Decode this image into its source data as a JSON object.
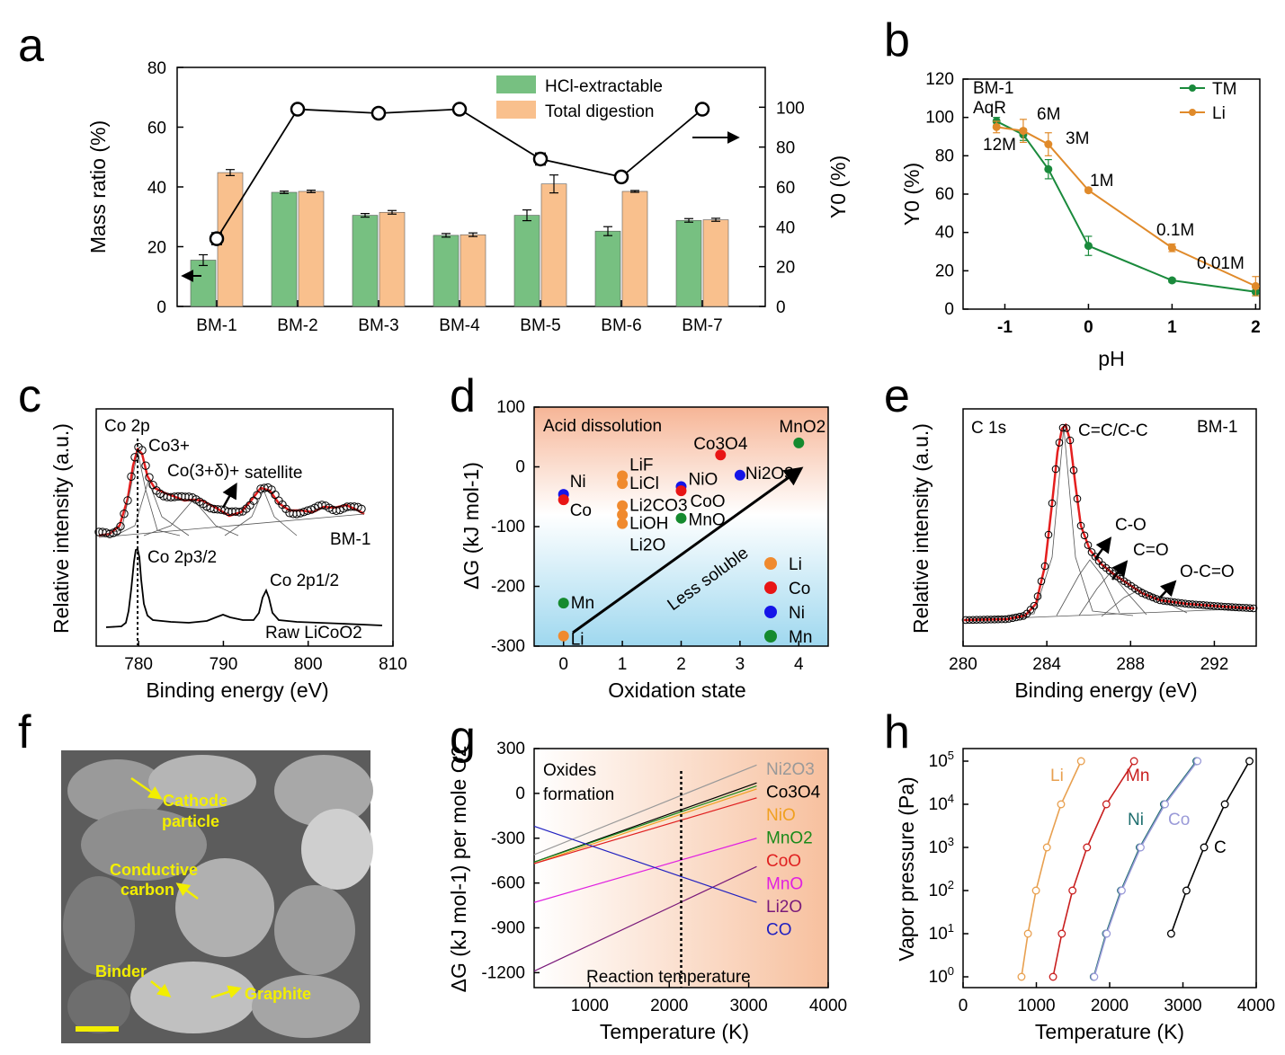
{
  "panel_labels": [
    "a",
    "b",
    "c",
    "d",
    "e",
    "f",
    "g",
    "h"
  ],
  "chart_data": [
    {
      "panel": "a",
      "type": "bar",
      "categories": [
        "BM-1",
        "BM-2",
        "BM-3",
        "BM-4",
        "BM-5",
        "BM-6",
        "BM-7"
      ],
      "series": [
        {
          "name": "HCl-extractable",
          "color": "#77c081",
          "values": [
            15.5,
            38.2,
            30.5,
            23.8,
            30.5,
            25.2,
            28.8
          ],
          "errors": [
            1.8,
            0.4,
            0.6,
            0.6,
            1.8,
            1.5,
            0.6
          ]
        },
        {
          "name": "Total digestion",
          "color": "#f9c08d",
          "values": [
            44.8,
            38.5,
            31.5,
            24.0,
            41.0,
            38.5,
            29.0
          ],
          "errors": [
            1.0,
            0.4,
            0.6,
            0.6,
            3.0,
            0.3,
            0.5
          ]
        }
      ],
      "secondary_series": {
        "name": "Y0",
        "values": [
          34,
          99,
          97,
          99,
          74,
          65,
          99
        ],
        "errors": [
          3,
          1,
          1,
          2,
          3,
          2,
          1
        ]
      },
      "xlabel": "",
      "ylabel": "Mass ratio (%)",
      "ylim": [
        0,
        80
      ],
      "yticks": [
        "0",
        "20",
        "40",
        "60",
        "80"
      ],
      "y2label": "Y0 (%)",
      "y2lim": [
        0,
        120
      ],
      "y2ticks": [
        "0",
        "20",
        "40",
        "60",
        "80",
        "100"
      ],
      "arrows": [
        "←",
        "→"
      ]
    },
    {
      "panel": "b",
      "type": "line",
      "title": "BM-1",
      "xlabel": "pH",
      "ylabel": "Y0 (%)",
      "xlim": [
        -1.5,
        2.05
      ],
      "ylim": [
        0,
        120
      ],
      "xticks": [
        "-1",
        "0",
        "1",
        "2"
      ],
      "yticks": [
        "0",
        "20",
        "40",
        "60",
        "80",
        "100",
        "120"
      ],
      "series": [
        {
          "name": "TM",
          "color": "#1a8a3c",
          "x": [
            -1.1,
            -0.78,
            -0.48,
            0,
            1,
            2
          ],
          "y": [
            98,
            91,
            73,
            33,
            15,
            9
          ],
          "errors": [
            2,
            3,
            5,
            5,
            1,
            2
          ]
        },
        {
          "name": "Li",
          "color": "#e08a2a",
          "x": [
            -1.1,
            -0.78,
            -0.48,
            0,
            1,
            2
          ],
          "y": [
            95,
            93,
            86,
            62,
            32,
            12
          ],
          "errors": [
            3,
            6,
            6,
            1,
            2,
            5
          ]
        }
      ],
      "annotations": [
        "AqR",
        "12M",
        "6M",
        "3M",
        "1M",
        "0.1M",
        "0.01M"
      ]
    },
    {
      "panel": "c",
      "type": "line",
      "title": "Co 2p",
      "xlabel": "Binding energy (eV)",
      "ylabel": "Relative intensity (a.u.)",
      "xlim": [
        775,
        810
      ],
      "xticks": [
        "780",
        "790",
        "800",
        "810"
      ],
      "series_labels": [
        "BM-1",
        "Raw LiCoO2"
      ],
      "annotations": [
        "Co3+",
        "Co(3+δ)+",
        "satellite",
        "Co 2p3/2",
        "Co 2p1/2"
      ]
    },
    {
      "panel": "d",
      "type": "scatter",
      "title": "Acid dissolution",
      "xlabel": "Oxidation state",
      "ylabel": "ΔG (kJ mol-1)",
      "xlim": [
        -0.5,
        4.5
      ],
      "ylim": [
        -300,
        100
      ],
      "xticks": [
        "0",
        "1",
        "2",
        "3",
        "4"
      ],
      "yticks": [
        "-300",
        "-200",
        "-100",
        "0",
        "100"
      ],
      "legend": [
        {
          "name": "Li",
          "color": "#f08a2e"
        },
        {
          "name": "Co",
          "color": "#e81515"
        },
        {
          "name": "Ni",
          "color": "#1515e8"
        },
        {
          "name": "Mn",
          "color": "#158a2e"
        }
      ],
      "points": [
        {
          "label": "Ni",
          "x": 0,
          "y": -46,
          "element": "Ni"
        },
        {
          "label": "Co",
          "x": 0,
          "y": -55,
          "element": "Co"
        },
        {
          "label": "Mn",
          "x": 0,
          "y": -228,
          "element": "Mn"
        },
        {
          "label": "Li",
          "x": 0,
          "y": -283,
          "element": "Li"
        },
        {
          "label": "LiF",
          "x": 1,
          "y": -15,
          "element": "Li"
        },
        {
          "label": "LiCl",
          "x": 1,
          "y": -28,
          "element": "Li"
        },
        {
          "label": "Li2CO3",
          "x": 1,
          "y": -65,
          "element": "Li"
        },
        {
          "label": "LiOH",
          "x": 1,
          "y": -80,
          "element": "Li"
        },
        {
          "label": "Li2O",
          "x": 1,
          "y": -95,
          "element": "Li"
        },
        {
          "label": "NiO",
          "x": 2,
          "y": -33,
          "element": "Ni"
        },
        {
          "label": "CoO",
          "x": 2,
          "y": -40,
          "element": "Co"
        },
        {
          "label": "MnO",
          "x": 2,
          "y": -86,
          "element": "Mn"
        },
        {
          "label": "Co3O4",
          "x": 2.67,
          "y": 20,
          "element": "Co"
        },
        {
          "label": "Ni2O3",
          "x": 3,
          "y": -14,
          "element": "Ni"
        },
        {
          "label": "MnO2",
          "x": 4,
          "y": 40,
          "element": "Mn"
        }
      ],
      "annotations": [
        "Less soluble"
      ]
    },
    {
      "panel": "e",
      "type": "line",
      "title": "C 1s",
      "xlabel": "Binding energy (eV)",
      "ylabel": "Relative intensity (a.u.)",
      "xlim": [
        280,
        294
      ],
      "xticks": [
        "280",
        "284",
        "288",
        "292"
      ],
      "series_labels": [
        "BM-1"
      ],
      "annotations": [
        "C=C/C-C",
        "C-O",
        "C=O",
        "O-C=O"
      ]
    },
    {
      "panel": "g",
      "type": "line",
      "title": "Oxides formation",
      "xlabel": "Temperature (K)",
      "ylabel": "ΔG (kJ mol-1) per mole O2",
      "xlim": [
        300,
        4000
      ],
      "ylim": [
        -1300,
        300
      ],
      "xticks": [
        "1000",
        "2000",
        "3000",
        "4000"
      ],
      "yticks": [
        "-1200",
        "-900",
        "-600",
        "-300",
        "0",
        "300"
      ],
      "vline_label": "Reaction temperature",
      "vline_x": 2150,
      "series": [
        {
          "name": "Ni2O3",
          "color": "#999999",
          "x": [
            300,
            3100
          ],
          "y": [
            -410,
            190
          ]
        },
        {
          "name": "Co3O4",
          "color": "#000000",
          "x": [
            300,
            3100
          ],
          "y": [
            -460,
            70
          ]
        },
        {
          "name": "NiO",
          "color": "#f0a020",
          "x": [
            300,
            3100
          ],
          "y": [
            -470,
            30
          ]
        },
        {
          "name": "MnO2",
          "color": "#1a8a1a",
          "x": [
            300,
            3100
          ],
          "y": [
            -460,
            50
          ]
        },
        {
          "name": "CoO",
          "color": "#e02020",
          "x": [
            300,
            3100
          ],
          "y": [
            -470,
            -30
          ]
        },
        {
          "name": "MnO",
          "color": "#e020e0",
          "x": [
            300,
            3100
          ],
          "y": [
            -730,
            -300
          ]
        },
        {
          "name": "Li2O",
          "color": "#7a1a7a",
          "x": [
            300,
            3100
          ],
          "y": [
            -1190,
            -490
          ]
        },
        {
          "name": "CO",
          "color": "#2020c0",
          "x": [
            300,
            3100
          ],
          "y": [
            -220,
            -730
          ]
        }
      ]
    },
    {
      "panel": "h",
      "type": "scatter",
      "xlabel": "Temperature (K)",
      "ylabel": "Vapor pressure (Pa)",
      "xlim": [
        0,
        4000
      ],
      "ylim": [
        1,
        100000
      ],
      "xticks": [
        "0",
        "1000",
        "2000",
        "3000",
        "4000"
      ],
      "yticks": [
        "10^0",
        "10^1",
        "10^2",
        "10^3",
        "10^4",
        "10^5"
      ],
      "series": [
        {
          "name": "Li",
          "color": "#e8a050",
          "x": [
            797,
            885,
            995,
            1144,
            1337,
            1610
          ],
          "y": [
            1,
            10,
            100,
            1000,
            10000,
            100000
          ]
        },
        {
          "name": "Mn",
          "color": "#c81e1e",
          "x": [
            1228,
            1347,
            1493,
            1691,
            1955,
            2333
          ],
          "y": [
            1,
            10,
            100,
            1000,
            10000,
            100000
          ]
        },
        {
          "name": "Ni",
          "color": "#1e6e6e",
          "x": [
            1783,
            1950,
            2154,
            2410,
            2741,
            3184
          ],
          "y": [
            1,
            10,
            100,
            1000,
            10000,
            100000
          ]
        },
        {
          "name": "Co",
          "color": "#9a9ad8",
          "x": [
            1790,
            1960,
            2165,
            2423,
            2755,
            3198
          ],
          "y": [
            1,
            10,
            100,
            1000,
            10000,
            100000
          ]
        },
        {
          "name": "C",
          "color": "#000000",
          "x": [
            2839,
            3048,
            3289,
            3572,
            3908
          ],
          "y": [
            10,
            100,
            1000,
            10000,
            100000
          ]
        }
      ]
    }
  ],
  "micrograph": {
    "labels": [
      "Cathode",
      "particle",
      "Conductive",
      "carbon",
      "Binder",
      "Graphite"
    ]
  }
}
